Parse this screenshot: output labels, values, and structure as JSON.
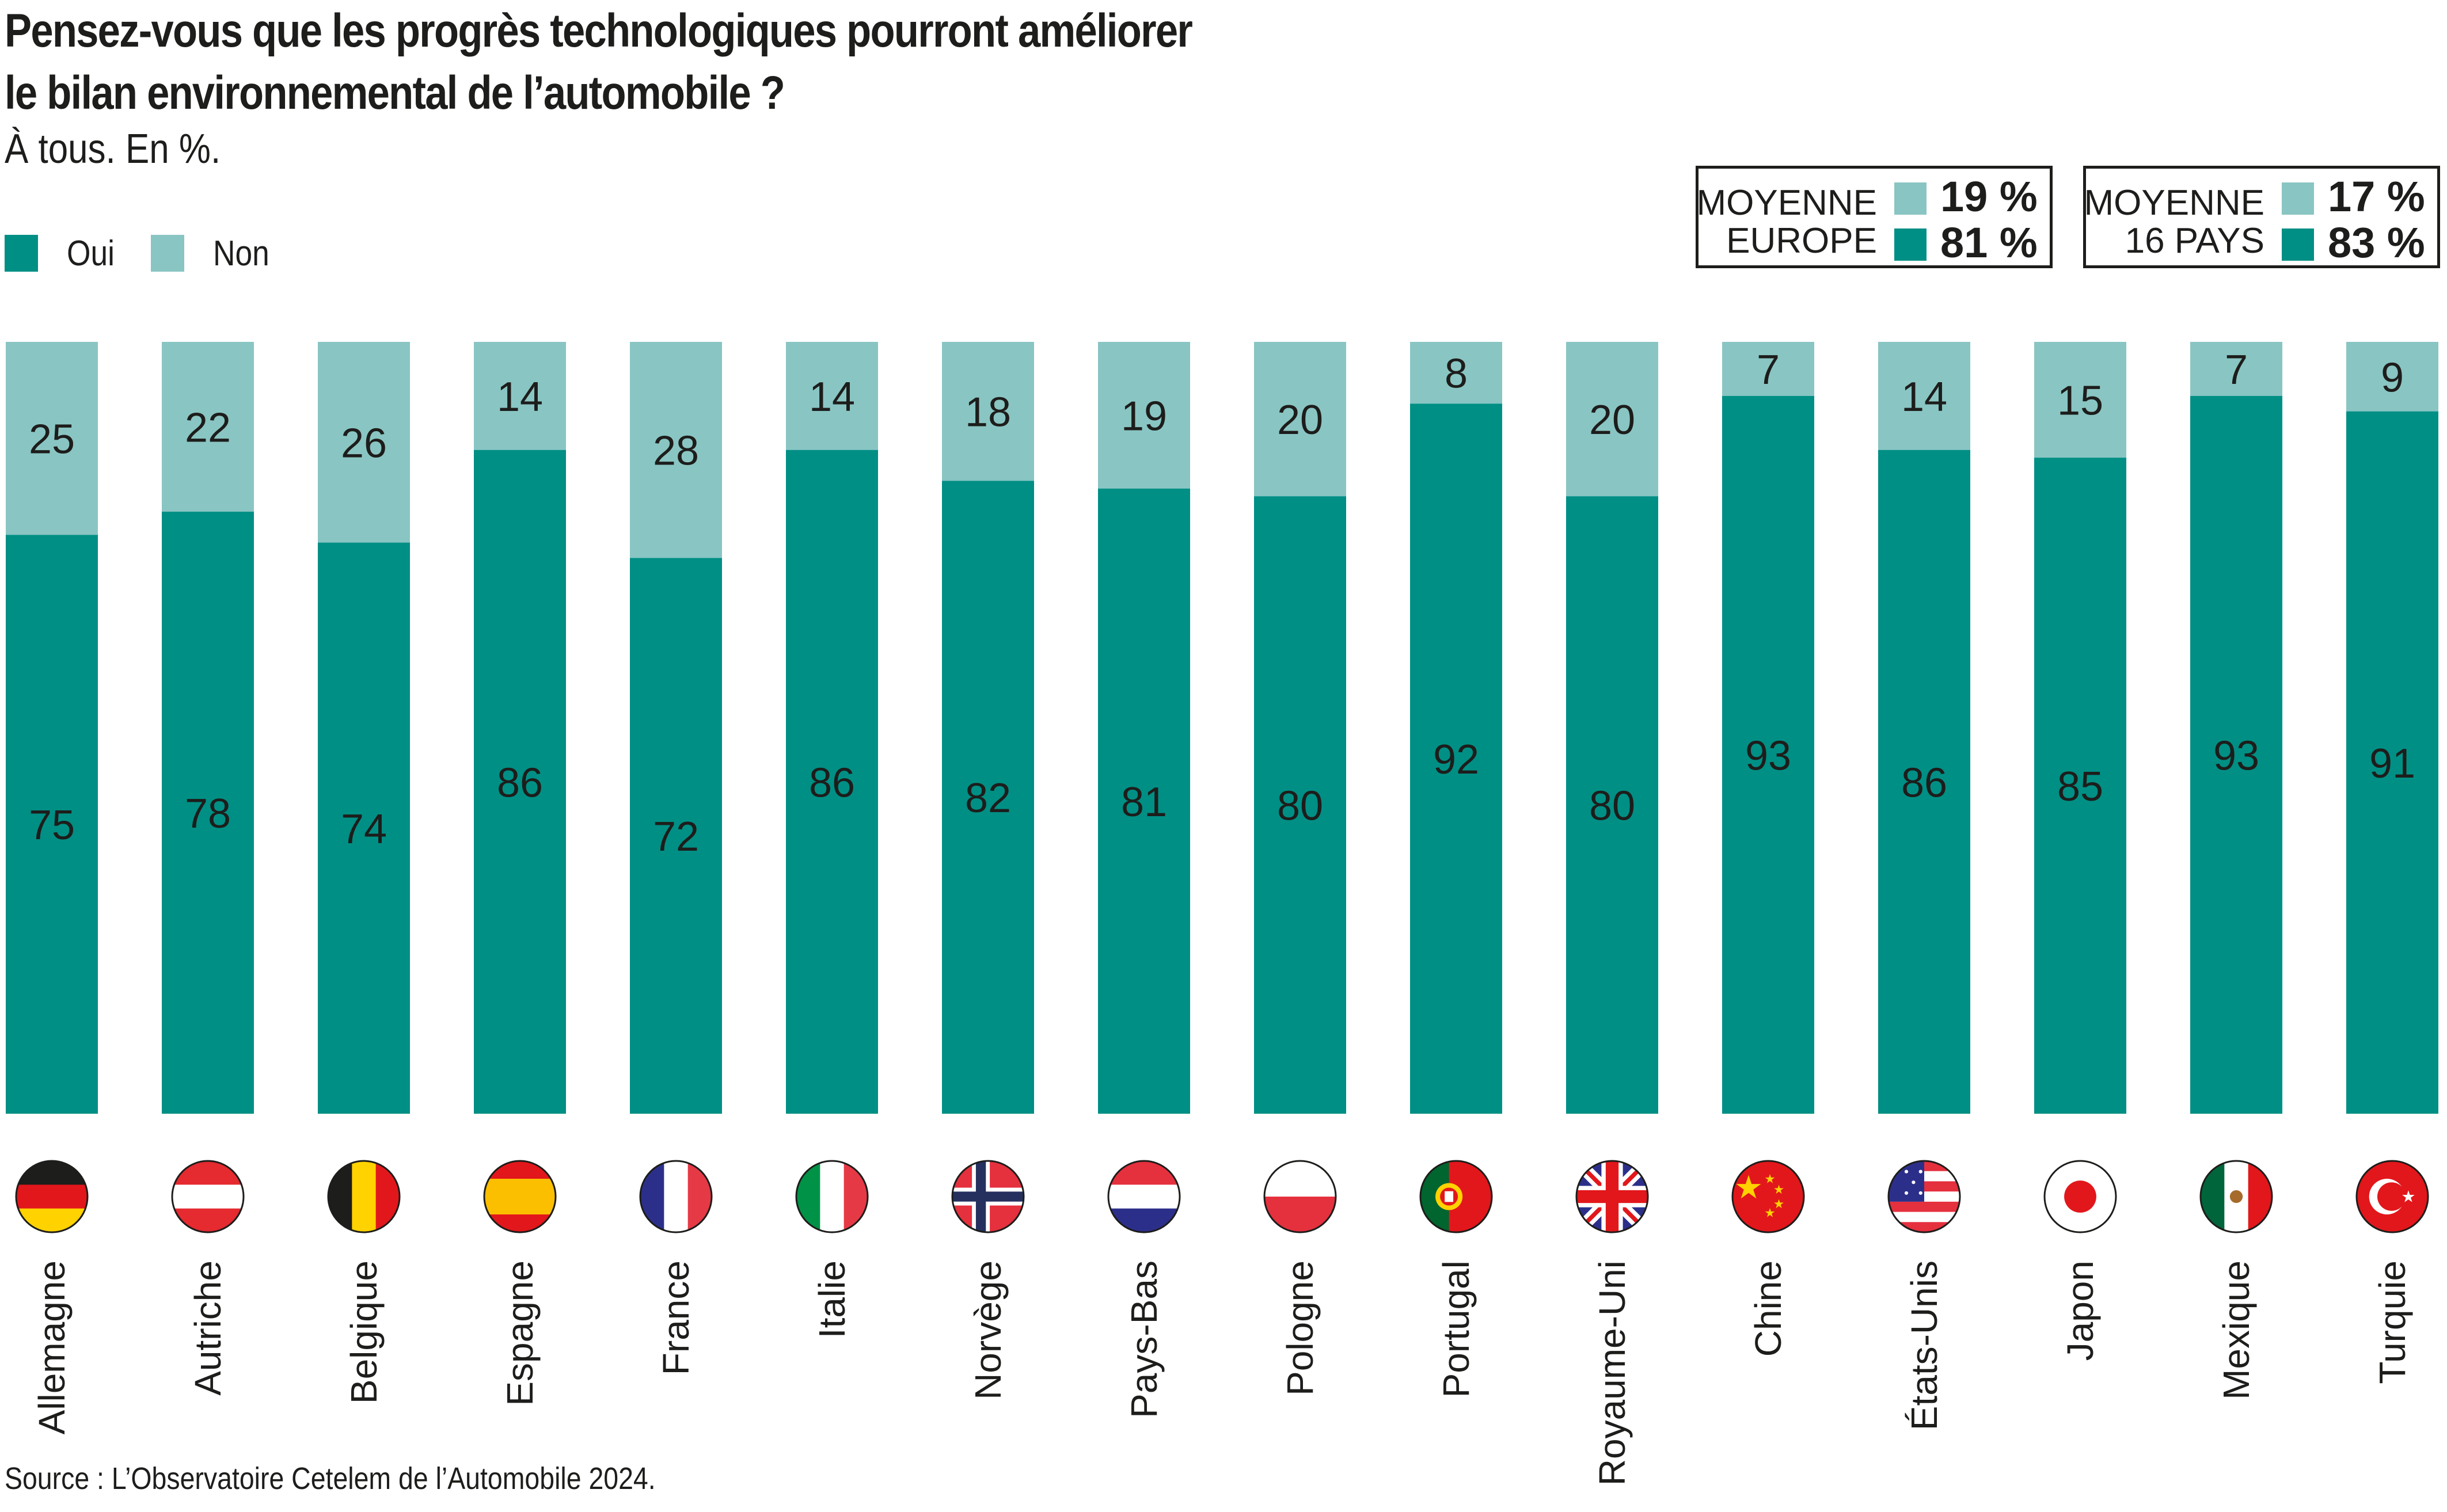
{
  "header": {
    "title_line1": "Pensez-vous que les progrès technologiques pourront améliorer",
    "title_line2": "le bilan environnemental de l’automobile ?",
    "subtitle": "À tous. En %."
  },
  "legend": {
    "oui": "Oui",
    "non": "Non"
  },
  "colors": {
    "oui": "#008f85",
    "non": "#89c5c3",
    "text": "#1d1d1b"
  },
  "averages": [
    {
      "label_line1": "MOYENNE",
      "label_line2": "EUROPE",
      "non": "19 %",
      "oui": "81 %"
    },
    {
      "label_line1": "MOYENNE",
      "label_line2": "16 PAYS",
      "non": "17 %",
      "oui": "83 %"
    }
  ],
  "source": "Source : L’Observatoire Cetelem de l’Automobile 2024.",
  "chart_data": {
    "type": "bar",
    "stacked": true,
    "title": "Pensez-vous que les progrès technologiques pourront améliorer le bilan environnemental de l’automobile ?",
    "subtitle": "À tous. En %.",
    "categories": [
      "Allemagne",
      "Autriche",
      "Belgique",
      "Espagne",
      "France",
      "Italie",
      "Norvège",
      "Pays-Bas",
      "Pologne",
      "Portugal",
      "Royaume-Uni",
      "Chine",
      "États-Unis",
      "Japon",
      "Mexique",
      "Turquie"
    ],
    "flags": [
      "de",
      "at",
      "be",
      "es",
      "fr",
      "it",
      "no",
      "nl",
      "pl",
      "pt",
      "gb",
      "cn",
      "us",
      "jp",
      "mx",
      "tr"
    ],
    "series": [
      {
        "name": "Oui",
        "values": [
          75,
          78,
          74,
          86,
          72,
          86,
          82,
          81,
          80,
          92,
          80,
          93,
          86,
          85,
          93,
          91
        ]
      },
      {
        "name": "Non",
        "values": [
          25,
          22,
          26,
          14,
          28,
          14,
          18,
          19,
          20,
          8,
          20,
          7,
          14,
          15,
          7,
          9
        ]
      }
    ],
    "xlabel": "",
    "ylabel": "",
    "ylim": [
      0,
      100
    ],
    "grid": false,
    "legend_position": "top-left"
  }
}
